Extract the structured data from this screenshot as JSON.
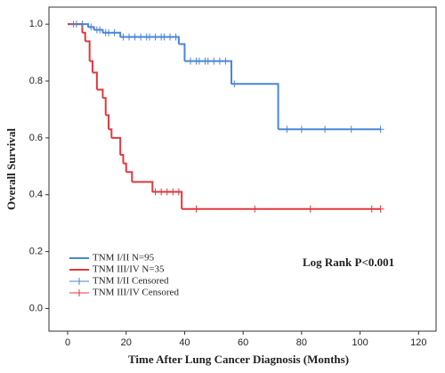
{
  "chart_data": {
    "type": "step",
    "xlabel": "Time After Lung Cancer Diagnosis (Months)",
    "ylabel": "Overall Survival",
    "annotation": "Log Rank P<0.001",
    "xlim": [
      -6.4,
      126
    ],
    "xticks": [
      0,
      20,
      40,
      60,
      80,
      100,
      120
    ],
    "ylim": [
      -0.08,
      1.06
    ],
    "yticks": [
      {
        "value": 0,
        "label": "0.0"
      },
      0.2,
      0.4,
      0.6,
      0.8,
      {
        "value": 1,
        "label": "1.0"
      }
    ],
    "legend": "lower left",
    "series": [
      {
        "name": "TNM I/II N=95",
        "color": "#4a86d6",
        "drawstyle": "steps-post",
        "x": [
          0,
          7,
          9,
          12,
          18,
          38,
          40,
          56,
          72,
          107
        ],
        "values": [
          1,
          0.99,
          0.98,
          0.97,
          0.955,
          0.93,
          0.87,
          0.79,
          0.63,
          0.63
        ]
      },
      {
        "name": "TNM III/IV N=35",
        "color": "#e0393e",
        "drawstyle": "steps-post",
        "x": [
          0,
          5,
          6,
          7.5,
          8.5,
          10,
          12,
          13,
          14,
          15,
          18,
          19,
          20,
          22,
          29,
          39,
          107
        ],
        "values": [
          1,
          0.97,
          0.94,
          0.87,
          0.83,
          0.77,
          0.74,
          0.68,
          0.63,
          0.6,
          0.54,
          0.51,
          0.48,
          0.445,
          0.41,
          0.35,
          0.35
        ]
      },
      {
        "name": "TNM I/II Censored",
        "color": "#4a86d6",
        "marker": "+",
        "x": [
          2,
          3,
          5,
          8,
          10,
          11,
          13,
          14,
          16,
          19,
          21,
          23,
          25,
          27,
          28,
          30,
          32,
          33,
          35,
          37,
          42,
          44,
          45,
          47,
          48,
          50,
          52,
          54,
          57,
          75,
          80,
          88,
          97,
          107
        ],
        "values": [
          1,
          1,
          1,
          0.99,
          0.98,
          0.98,
          0.97,
          0.97,
          0.97,
          0.955,
          0.955,
          0.955,
          0.955,
          0.955,
          0.955,
          0.955,
          0.955,
          0.955,
          0.955,
          0.955,
          0.87,
          0.87,
          0.87,
          0.87,
          0.87,
          0.87,
          0.87,
          0.87,
          0.79,
          0.63,
          0.63,
          0.63,
          0.63,
          0.63
        ]
      },
      {
        "name": "TNM III/IV Censored",
        "color": "#e0393e",
        "marker": "+",
        "x": [
          30,
          32,
          34,
          36,
          38,
          44,
          64,
          83,
          104,
          107
        ],
        "values": [
          0.41,
          0.41,
          0.41,
          0.41,
          0.41,
          0.35,
          0.35,
          0.35,
          0.35,
          0.35
        ]
      }
    ]
  }
}
